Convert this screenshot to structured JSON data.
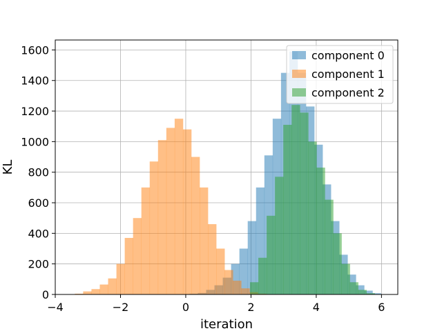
{
  "chart_data": {
    "type": "histogram",
    "title": "",
    "xlabel": "iteration",
    "ylabel": "KL",
    "xlim": [
      -4,
      6.5
    ],
    "ylim": [
      0,
      1665
    ],
    "xticks": [
      -4,
      -2,
      0,
      2,
      4,
      6
    ],
    "yticks": [
      0,
      200,
      400,
      600,
      800,
      1000,
      1200,
      1400,
      1600
    ],
    "grid": true,
    "legend_position": "top-right",
    "series": [
      {
        "name": "component 0",
        "color": "#1f77b4",
        "alpha": 0.5,
        "bin_start": -0.14,
        "bin_width": 0.255,
        "counts": [
          2,
          5,
          10,
          30,
          60,
          110,
          200,
          300,
          480,
          700,
          910,
          1150,
          1450,
          1590,
          1450,
          1230,
          980,
          720,
          480,
          260,
          130,
          60,
          25,
          8,
          2,
          1
        ]
      },
      {
        "name": "component 1",
        "color": "#ff7f0e",
        "alpha": 0.5,
        "bin_start": -3.4,
        "bin_width": 0.255,
        "counts": [
          5,
          20,
          35,
          65,
          105,
          200,
          370,
          500,
          700,
          870,
          1010,
          1090,
          1150,
          1080,
          900,
          700,
          460,
          300,
          160,
          90,
          40,
          15,
          5,
          2
        ]
      },
      {
        "name": "component 2",
        "color": "#2ca02c",
        "alpha": 0.5,
        "bin_start": 1.97,
        "bin_width": 0.255,
        "counts": [
          80,
          240,
          515,
          770,
          1110,
          1240,
          1190,
          1000,
          830,
          620,
          400,
          200,
          80,
          30,
          8,
          2
        ]
      }
    ]
  }
}
